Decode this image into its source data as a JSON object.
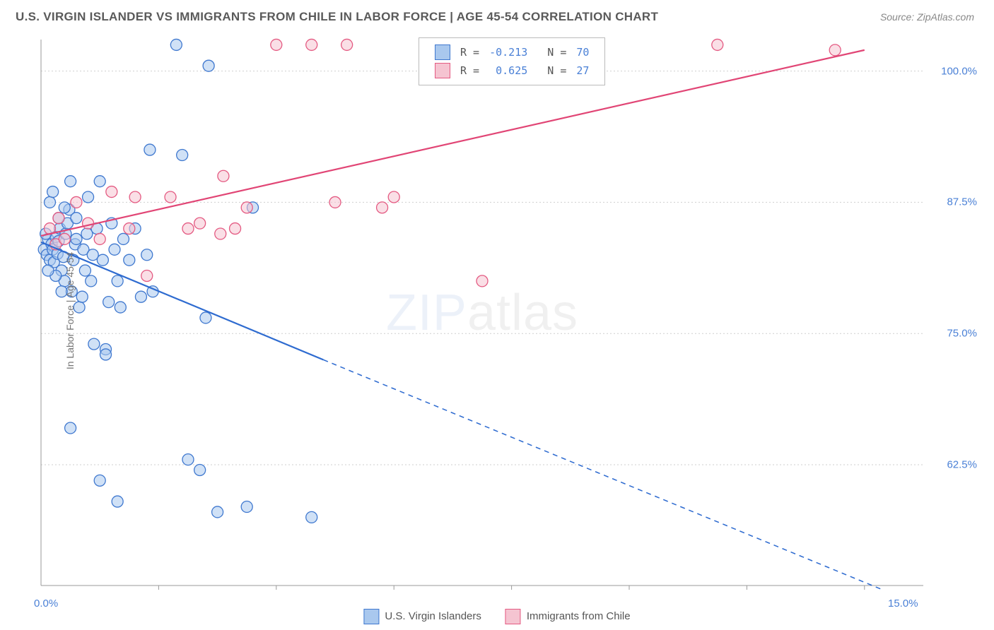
{
  "title": "U.S. VIRGIN ISLANDER VS IMMIGRANTS FROM CHILE IN LABOR FORCE | AGE 45-54 CORRELATION CHART",
  "source": "Source: ZipAtlas.com",
  "ylabel": "In Labor Force | Age 45-54",
  "watermark_a": "ZIP",
  "watermark_b": "atlas",
  "chart": {
    "type": "scatter",
    "xlim": [
      0.0,
      15.0
    ],
    "ylim": [
      51.0,
      103.0
    ],
    "xticks": [
      0.0,
      15.0
    ],
    "xticklabels": [
      "0.0%",
      "15.0%"
    ],
    "xtick_minor": [
      2.0,
      4.0,
      6.0,
      8.0,
      10.0,
      12.0,
      14.0
    ],
    "yticks": [
      62.5,
      75.0,
      87.5,
      100.0
    ],
    "yticklabels": [
      "62.5%",
      "75.0%",
      "87.5%",
      "100.0%"
    ],
    "grid_color": "#cfcfcf",
    "axis_color": "#9a9a9a",
    "background_color": "#ffffff",
    "marker_radius": 8,
    "marker_opacity": 0.55,
    "series": [
      {
        "name": "U.S. Virgin Islanders",
        "color_fill": "#a9c8ee",
        "color_stroke": "#3f78cf",
        "R": "-0.213",
        "N": "70",
        "reg_color": "#2e6bd0",
        "reg_start": [
          0.0,
          83.7
        ],
        "reg_end_solid": [
          4.8,
          72.5
        ],
        "reg_end_dash": [
          15.0,
          49.0
        ],
        "regression_width": 2.2,
        "points": [
          [
            0.05,
            83.0
          ],
          [
            0.1,
            82.5
          ],
          [
            0.12,
            84.0
          ],
          [
            0.15,
            82.0
          ],
          [
            0.18,
            83.5
          ],
          [
            0.2,
            83.0
          ],
          [
            0.22,
            81.8
          ],
          [
            0.25,
            84.2
          ],
          [
            0.28,
            82.6
          ],
          [
            0.3,
            83.8
          ],
          [
            0.32,
            85.0
          ],
          [
            0.35,
            81.0
          ],
          [
            0.38,
            82.3
          ],
          [
            0.4,
            80.0
          ],
          [
            0.42,
            84.5
          ],
          [
            0.45,
            85.5
          ],
          [
            0.48,
            86.8
          ],
          [
            0.5,
            89.5
          ],
          [
            0.52,
            79.0
          ],
          [
            0.55,
            82.0
          ],
          [
            0.58,
            83.5
          ],
          [
            0.6,
            86.0
          ],
          [
            0.65,
            77.5
          ],
          [
            0.7,
            78.5
          ],
          [
            0.72,
            83.0
          ],
          [
            0.75,
            81.0
          ],
          [
            0.78,
            84.5
          ],
          [
            0.8,
            88.0
          ],
          [
            0.85,
            80.0
          ],
          [
            0.88,
            82.5
          ],
          [
            0.9,
            74.0
          ],
          [
            0.95,
            85.0
          ],
          [
            1.0,
            89.5
          ],
          [
            1.05,
            82.0
          ],
          [
            1.1,
            73.5
          ],
          [
            1.1,
            73.0
          ],
          [
            1.15,
            78.0
          ],
          [
            1.2,
            85.5
          ],
          [
            1.25,
            83.0
          ],
          [
            1.3,
            80.0
          ],
          [
            1.35,
            77.5
          ],
          [
            1.4,
            84.0
          ],
          [
            1.5,
            82.0
          ],
          [
            1.6,
            85.0
          ],
          [
            1.7,
            78.5
          ],
          [
            1.8,
            82.5
          ],
          [
            1.85,
            92.5
          ],
          [
            1.9,
            79.0
          ],
          [
            2.3,
            102.5
          ],
          [
            2.4,
            92.0
          ],
          [
            2.5,
            63.0
          ],
          [
            2.8,
            76.5
          ],
          [
            2.85,
            100.5
          ],
          [
            2.7,
            62.0
          ],
          [
            3.0,
            58.0
          ],
          [
            3.5,
            58.5
          ],
          [
            3.6,
            87.0
          ],
          [
            0.5,
            66.0
          ],
          [
            1.0,
            61.0
          ],
          [
            1.3,
            59.0
          ],
          [
            4.6,
            57.5
          ],
          [
            0.15,
            87.5
          ],
          [
            0.2,
            88.5
          ],
          [
            0.4,
            87.0
          ],
          [
            0.6,
            84.0
          ],
          [
            0.25,
            80.5
          ],
          [
            0.35,
            79.0
          ],
          [
            0.08,
            84.5
          ],
          [
            0.12,
            81.0
          ],
          [
            0.3,
            86.0
          ]
        ]
      },
      {
        "name": "Immigrants from Chile",
        "color_fill": "#f5c4d1",
        "color_stroke": "#e45a82",
        "R": "0.625",
        "N": "27",
        "reg_color": "#e14575",
        "reg_start": [
          0.0,
          84.3
        ],
        "reg_end_solid": [
          14.0,
          102.0
        ],
        "regression_width": 2.2,
        "points": [
          [
            0.15,
            85.0
          ],
          [
            0.25,
            83.5
          ],
          [
            0.3,
            86.0
          ],
          [
            0.4,
            84.0
          ],
          [
            0.6,
            87.5
          ],
          [
            0.8,
            85.5
          ],
          [
            1.0,
            84.0
          ],
          [
            1.2,
            88.5
          ],
          [
            1.5,
            85.0
          ],
          [
            1.6,
            88.0
          ],
          [
            1.8,
            80.5
          ],
          [
            2.2,
            88.0
          ],
          [
            2.5,
            85.0
          ],
          [
            2.7,
            85.5
          ],
          [
            3.05,
            84.5
          ],
          [
            3.1,
            90.0
          ],
          [
            3.3,
            85.0
          ],
          [
            3.5,
            87.0
          ],
          [
            4.0,
            102.5
          ],
          [
            4.6,
            102.5
          ],
          [
            5.2,
            102.5
          ],
          [
            5.0,
            87.5
          ],
          [
            5.8,
            87.0
          ],
          [
            6.0,
            88.0
          ],
          [
            7.5,
            80.0
          ],
          [
            11.5,
            102.5
          ],
          [
            13.5,
            102.0
          ]
        ]
      }
    ]
  },
  "top_legend": {
    "R_label": "R =",
    "N_label": "N ="
  },
  "bottom_legend": {
    "items": [
      {
        "label": "U.S. Virgin Islanders",
        "fill": "#a9c8ee",
        "stroke": "#3f78cf"
      },
      {
        "label": "Immigrants from Chile",
        "fill": "#f5c4d1",
        "stroke": "#e45a82"
      }
    ]
  },
  "label_color": "#4a80d6"
}
